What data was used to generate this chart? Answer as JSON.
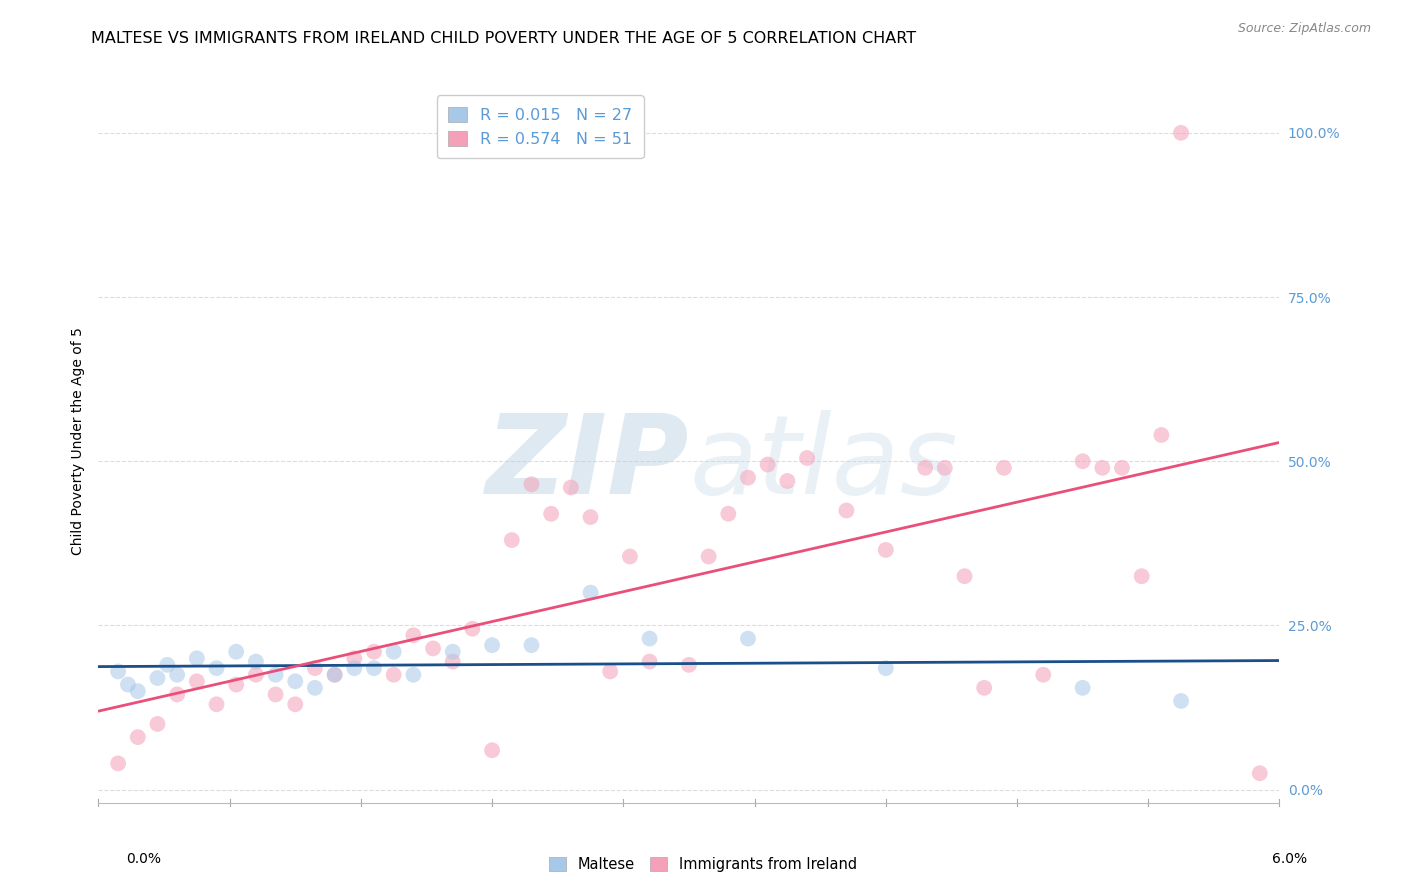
{
  "title": "MALTESE VS IMMIGRANTS FROM IRELAND CHILD POVERTY UNDER THE AGE OF 5 CORRELATION CHART",
  "source": "Source: ZipAtlas.com",
  "ylabel": "Child Poverty Under the Age of 5",
  "ytick_labels": [
    "0.0%",
    "25.0%",
    "50.0%",
    "75.0%",
    "100.0%"
  ],
  "ytick_values": [
    0.0,
    0.25,
    0.5,
    0.75,
    1.0
  ],
  "xlim": [
    0.0,
    0.06
  ],
  "ylim": [
    -0.02,
    1.08
  ],
  "maltese_color": "#a8c8e8",
  "ireland_color": "#f4a0b8",
  "maltese_line_color": "#1a4f8a",
  "ireland_line_color": "#e8507a",
  "background_color": "#ffffff",
  "grid_color": "#dddddd",
  "title_fontsize": 11.5,
  "axis_label_fontsize": 10,
  "tick_fontsize": 10,
  "source_fontsize": 9,
  "marker_size": 130,
  "marker_alpha": 0.55,
  "watermark_color": "#c8d8e8",
  "watermark_alpha": 0.35,
  "maltese_x": [
    0.001,
    0.0015,
    0.002,
    0.003,
    0.0035,
    0.004,
    0.005,
    0.006,
    0.007,
    0.008,
    0.009,
    0.01,
    0.011,
    0.012,
    0.013,
    0.014,
    0.015,
    0.016,
    0.018,
    0.02,
    0.022,
    0.025,
    0.028,
    0.033,
    0.04,
    0.05,
    0.055
  ],
  "maltese_y": [
    0.18,
    0.16,
    0.15,
    0.17,
    0.19,
    0.175,
    0.2,
    0.185,
    0.21,
    0.195,
    0.175,
    0.165,
    0.155,
    0.175,
    0.185,
    0.185,
    0.21,
    0.175,
    0.21,
    0.22,
    0.22,
    0.3,
    0.23,
    0.23,
    0.185,
    0.155,
    0.135
  ],
  "ireland_x": [
    0.001,
    0.002,
    0.003,
    0.004,
    0.005,
    0.006,
    0.007,
    0.008,
    0.009,
    0.01,
    0.011,
    0.012,
    0.013,
    0.014,
    0.015,
    0.016,
    0.017,
    0.018,
    0.019,
    0.02,
    0.021,
    0.022,
    0.023,
    0.024,
    0.025,
    0.026,
    0.027,
    0.028,
    0.03,
    0.031,
    0.032,
    0.033,
    0.034,
    0.035,
    0.036,
    0.038,
    0.04,
    0.042,
    0.043,
    0.044,
    0.045,
    0.046,
    0.048,
    0.05,
    0.051,
    0.052,
    0.053,
    0.054,
    0.055,
    0.059
  ],
  "ireland_y": [
    0.04,
    0.08,
    0.1,
    0.145,
    0.165,
    0.13,
    0.16,
    0.175,
    0.145,
    0.13,
    0.185,
    0.175,
    0.2,
    0.21,
    0.175,
    0.235,
    0.215,
    0.195,
    0.245,
    0.06,
    0.38,
    0.465,
    0.42,
    0.46,
    0.415,
    0.18,
    0.355,
    0.195,
    0.19,
    0.355,
    0.42,
    0.475,
    0.495,
    0.47,
    0.505,
    0.425,
    0.365,
    0.49,
    0.49,
    0.325,
    0.155,
    0.49,
    0.175,
    0.5,
    0.49,
    0.49,
    0.325,
    0.54,
    1.0,
    0.025
  ]
}
